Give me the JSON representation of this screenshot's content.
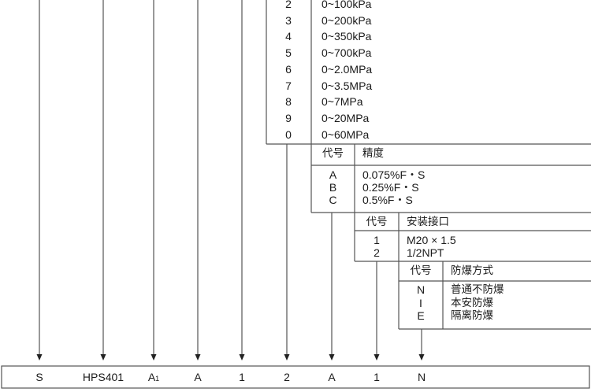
{
  "range_table": {
    "rows": [
      {
        "code": "2",
        "value": "0~100kPa"
      },
      {
        "code": "3",
        "value": "0~200kPa"
      },
      {
        "code": "4",
        "value": "0~350kPa"
      },
      {
        "code": "5",
        "value": "0~700kPa"
      },
      {
        "code": "6",
        "value": "0~2.0MPa"
      },
      {
        "code": "7",
        "value": "0~3.5MPa"
      },
      {
        "code": "8",
        "value": "0~7MPa"
      },
      {
        "code": "9",
        "value": "0~20MPa"
      },
      {
        "code": "0",
        "value": "0~60MPa"
      }
    ]
  },
  "precision_table": {
    "header_code": "代号",
    "header_name": "精度",
    "rows": [
      {
        "code": "A",
        "value": "0.075%F・S"
      },
      {
        "code": "B",
        "value": "0.25%F・S"
      },
      {
        "code": "C",
        "value": "0.5%F・S"
      }
    ]
  },
  "connection_table": {
    "header_code": "代号",
    "header_name": "安装接口",
    "rows": [
      {
        "code": "1",
        "value": "M20 × 1.5"
      },
      {
        "code": "2",
        "value": "1/2NPT"
      }
    ]
  },
  "explosion_table": {
    "header_code": "代号",
    "header_name": "防爆方式",
    "rows": [
      {
        "code": "N",
        "value": "普通不防爆"
      },
      {
        "code": "I",
        "value": "本安防爆"
      },
      {
        "code": "E",
        "value": "隔离防爆"
      }
    ]
  },
  "model_code": {
    "segments": [
      "S",
      "HPS401",
      "A",
      "A",
      "1",
      "2",
      "A",
      "1",
      "N"
    ],
    "subscript_a": "1"
  },
  "line_color": "#555555"
}
